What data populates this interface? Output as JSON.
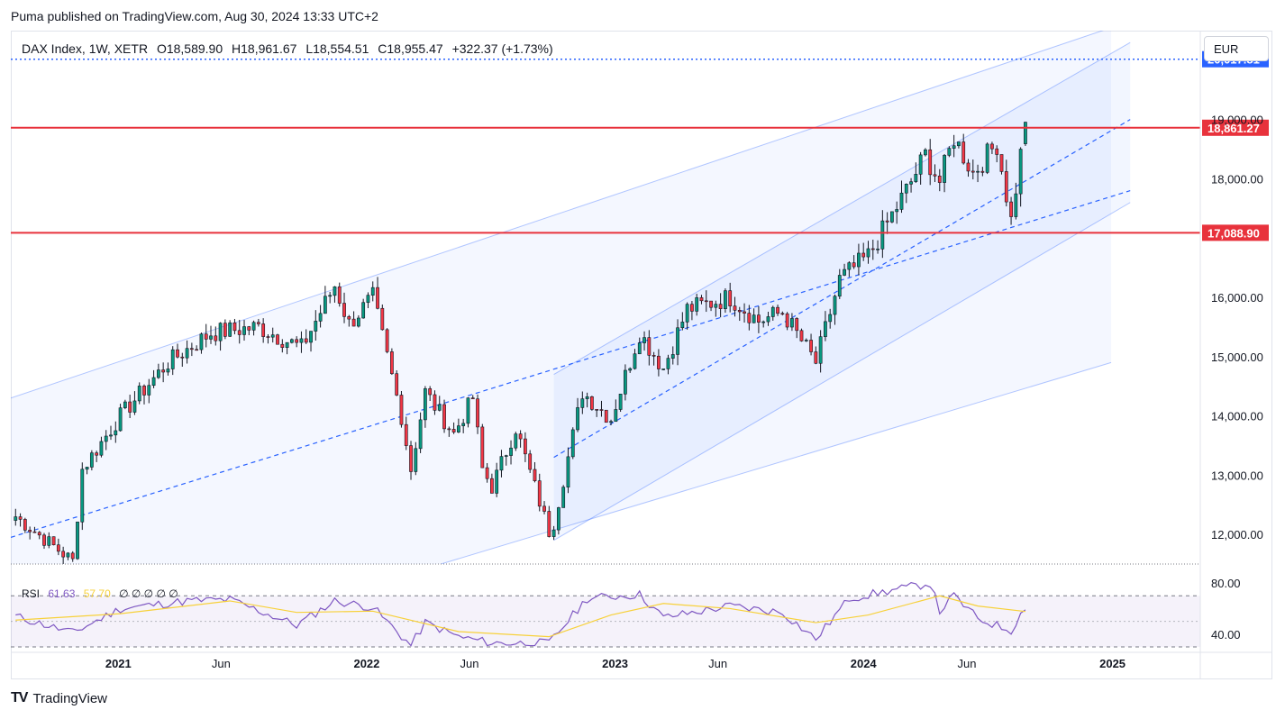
{
  "header": {
    "text": "Puma published on TradingView.com, Aug 30, 2024 13:33 UTC+2"
  },
  "legend": {
    "symbol": "DAX Index, 1W, XETR",
    "open": "O18,589.90",
    "high": "H18,961.67",
    "low": "L18,554.51",
    "close": "C18,955.47",
    "change": "+322.37 (+1.73%)"
  },
  "currency": "EUR",
  "rsi_legend": {
    "label": "RSI",
    "value": "61.63",
    "ma": "57.70",
    "extra": "∅ ∅ ∅ ∅ ∅"
  },
  "footer": {
    "brand": "TradingView",
    "logo_icon": "tradingview-logo-icon"
  },
  "colors": {
    "up": "#089981",
    "down": "#f23645",
    "level": "#e8323c",
    "channel": "#2962ff",
    "rsi": "#7e57c2",
    "rsi_ma": "#f7d13a"
  },
  "chart_data": [
    {
      "type": "candlestick",
      "ylim": [
        11500,
        20500
      ],
      "y_ticks": [
        "19,000.00",
        "18,000.00",
        "16,000.00",
        "15,000.00",
        "14,000.00",
        "13,000.00",
        "12,000.00"
      ],
      "y_tick_values": [
        19000,
        18000,
        16000,
        15000,
        14000,
        13000,
        12000
      ],
      "x_ticks": [
        "2021",
        "Jun",
        "2022",
        "Jun",
        "2023",
        "Jun",
        "2024",
        "Jun",
        "2025"
      ],
      "x_tick_dates": [
        "2021-01-01",
        "2021-06-01",
        "2022-01-01",
        "2022-06-01",
        "2023-01-01",
        "2023-06-01",
        "2024-01-01",
        "2024-06-01",
        "2025-01-01"
      ],
      "x_range": [
        "2020-07-27",
        "2025-05-10"
      ],
      "price_labels": [
        {
          "text": "20,017.81",
          "value": 20017.81,
          "style": "dotted",
          "color": "#2962ff"
        },
        {
          "text": "18,861.27",
          "value": 18861.27,
          "style": "solid",
          "color": "#e8323c"
        },
        {
          "text": "17,088.90",
          "value": 17088.9,
          "style": "solid",
          "color": "#e8323c"
        }
      ],
      "channels": [
        {
          "name": "",
          "upper": [
            [
              "2020-07-27",
              14300
            ],
            [
              "2024-12-30",
              20550
            ]
          ],
          "lower": [
            [
              "2022-04-20",
              11500
            ],
            [
              "2024-12-30",
              14900
            ]
          ]
        },
        {
          "name": "",
          "upper": [
            [
              "2022-10-03",
              14700
            ],
            [
              "2025-01-27",
              20300
            ]
          ],
          "lower": [
            [
              "2022-10-03",
              11900
            ],
            [
              "2025-01-27",
              17600
            ]
          ]
        }
      ],
      "trendlines": [
        {
          "points": [
            [
              "2020-07-27",
              11950
            ],
            [
              "2025-01-27",
              17800
            ]
          ],
          "style": "dashed"
        },
        {
          "points": [
            [
              "2022-10-03",
              13300
            ],
            [
              "2025-01-27",
              19000
            ]
          ],
          "style": "dashed"
        }
      ],
      "series": [
        {
          "name": "",
          "anchors": [
            [
              "2020-08-03",
              12300
            ],
            [
              "2020-10-26",
              11550
            ],
            [
              "2020-11-09",
              13100
            ],
            [
              "2021-01-04",
              14000
            ],
            [
              "2021-03-15",
              14900
            ],
            [
              "2021-05-17",
              15400
            ],
            [
              "2021-07-26",
              15500
            ],
            [
              "2021-09-27",
              15150
            ],
            [
              "2021-11-15",
              16200
            ],
            [
              "2021-12-06",
              15550
            ],
            [
              "2022-01-10",
              16000
            ],
            [
              "2022-02-21",
              14000
            ],
            [
              "2022-03-07",
              13100
            ],
            [
              "2022-03-28",
              14400
            ],
            [
              "2022-05-09",
              13700
            ],
            [
              "2022-06-06",
              14300
            ],
            [
              "2022-06-20",
              13100
            ],
            [
              "2022-07-04",
              12800
            ],
            [
              "2022-08-08",
              13800
            ],
            [
              "2022-09-26",
              12050
            ],
            [
              "2022-10-03",
              12200
            ],
            [
              "2022-11-14",
              14400
            ],
            [
              "2022-12-26",
              13950
            ],
            [
              "2023-02-06",
              15400
            ],
            [
              "2023-03-13",
              14800
            ],
            [
              "2023-04-17",
              15800
            ],
            [
              "2023-06-19",
              16000
            ],
            [
              "2023-07-31",
              15600
            ],
            [
              "2023-09-04",
              15750
            ],
            [
              "2023-10-23",
              14900
            ],
            [
              "2023-11-27",
              16300
            ],
            [
              "2024-01-08",
              16700
            ],
            [
              "2024-03-04",
              17800
            ],
            [
              "2024-04-01",
              18400
            ],
            [
              "2024-04-22",
              17950
            ],
            [
              "2024-05-13",
              18700
            ],
            [
              "2024-06-10",
              18100
            ],
            [
              "2024-07-15",
              18600
            ],
            [
              "2024-08-05",
              17300
            ],
            [
              "2024-08-26",
              18955
            ]
          ]
        }
      ]
    },
    {
      "type": "line",
      "name": "RSI",
      "ylim": [
        30,
        85
      ],
      "y_ticks": [
        "80.00",
        "40.00"
      ],
      "y_tick_values": [
        80,
        40
      ],
      "bands": [
        70,
        30
      ],
      "series": [
        {
          "name": "RSI",
          "anchors": [
            [
              "2020-08-03",
              54
            ],
            [
              "2020-10-26",
              41
            ],
            [
              "2021-01-04",
              60
            ],
            [
              "2021-04-12",
              66
            ],
            [
              "2021-06-14",
              67
            ],
            [
              "2021-09-20",
              47
            ],
            [
              "2021-11-15",
              66
            ],
            [
              "2022-01-10",
              61
            ],
            [
              "2022-03-07",
              31
            ],
            [
              "2022-03-28",
              49
            ],
            [
              "2022-05-16",
              38
            ],
            [
              "2022-07-04",
              33
            ],
            [
              "2022-09-26",
              33
            ],
            [
              "2022-11-21",
              68
            ],
            [
              "2023-02-06",
              71
            ],
            [
              "2023-03-13",
              53
            ],
            [
              "2023-06-19",
              62
            ],
            [
              "2023-09-04",
              57
            ],
            [
              "2023-10-23",
              36
            ],
            [
              "2023-12-11",
              68
            ],
            [
              "2024-03-11",
              77
            ],
            [
              "2024-04-08",
              80
            ],
            [
              "2024-04-22",
              58
            ],
            [
              "2024-05-13",
              70
            ],
            [
              "2024-06-17",
              52
            ],
            [
              "2024-08-05",
              43
            ],
            [
              "2024-08-26",
              61.63
            ]
          ]
        },
        {
          "name": "",
          "anchors": [
            [
              "2020-08-03",
              51
            ],
            [
              "2021-01-04",
              56
            ],
            [
              "2021-06-14",
              66
            ],
            [
              "2021-09-20",
              57
            ],
            [
              "2022-01-10",
              58
            ],
            [
              "2022-05-16",
              42
            ],
            [
              "2022-09-26",
              38
            ],
            [
              "2022-12-26",
              55
            ],
            [
              "2023-03-13",
              64
            ],
            [
              "2023-06-19",
              60
            ],
            [
              "2023-10-23",
              49
            ],
            [
              "2024-01-08",
              55
            ],
            [
              "2024-04-22",
              70
            ],
            [
              "2024-06-17",
              62
            ],
            [
              "2024-08-26",
              57.7
            ]
          ]
        }
      ]
    }
  ]
}
